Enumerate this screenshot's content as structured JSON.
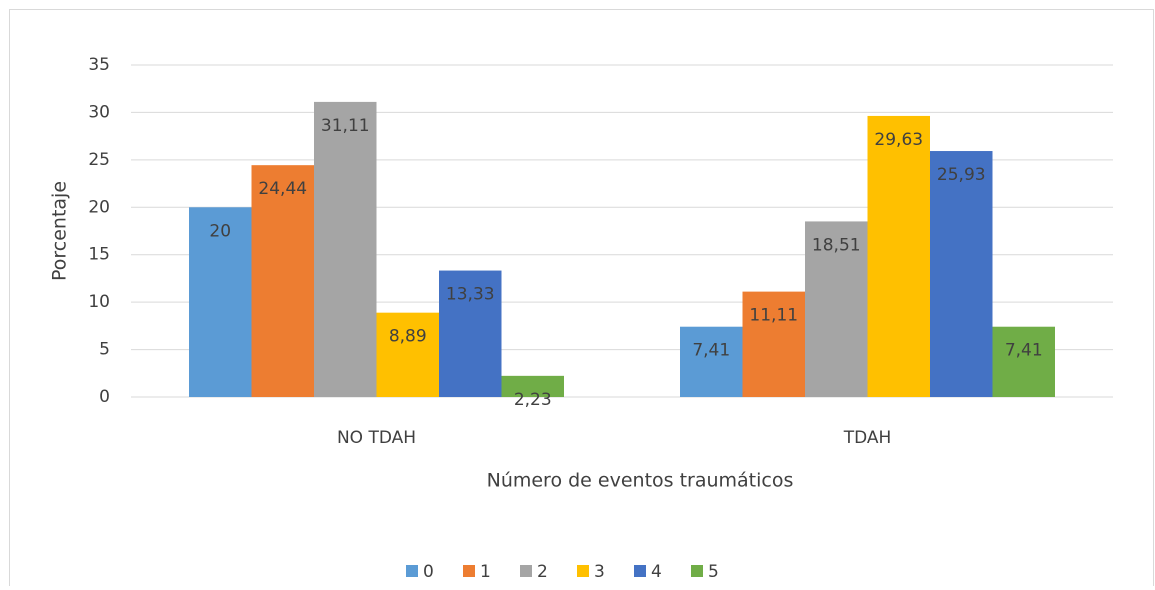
{
  "chart_data": {
    "type": "bar",
    "x_label": "Número de eventos traumáticos",
    "y_label": "Porcentaje",
    "categories": [
      "NO TDAH",
      "TDAH"
    ],
    "series": [
      {
        "name": "0",
        "color": "#5b9bd5",
        "values": [
          20,
          7.41
        ],
        "value_labels": [
          "20",
          "7,41"
        ]
      },
      {
        "name": "1",
        "color": "#ed7d31",
        "values": [
          24.44,
          11.11
        ],
        "value_labels": [
          "24,44",
          "11,11"
        ]
      },
      {
        "name": "2",
        "color": "#a5a5a5",
        "values": [
          31.11,
          18.51
        ],
        "value_labels": [
          "31,11",
          "18,51"
        ]
      },
      {
        "name": "3",
        "color": "#ffc000",
        "values": [
          8.89,
          29.63
        ],
        "value_labels": [
          "8,89",
          "29,63"
        ]
      },
      {
        "name": "4",
        "color": "#4472c4",
        "values": [
          13.33,
          25.93
        ],
        "value_labels": [
          "13,33",
          "25,93"
        ]
      },
      {
        "name": "5",
        "color": "#70ad47",
        "values": [
          2.23,
          7.41
        ],
        "value_labels": [
          "2,23",
          "7,41"
        ]
      }
    ],
    "ylim": [
      0,
      35
    ],
    "yticks": [
      0,
      5,
      10,
      15,
      20,
      25,
      30,
      35
    ],
    "grid": true,
    "legend": "bottom"
  }
}
